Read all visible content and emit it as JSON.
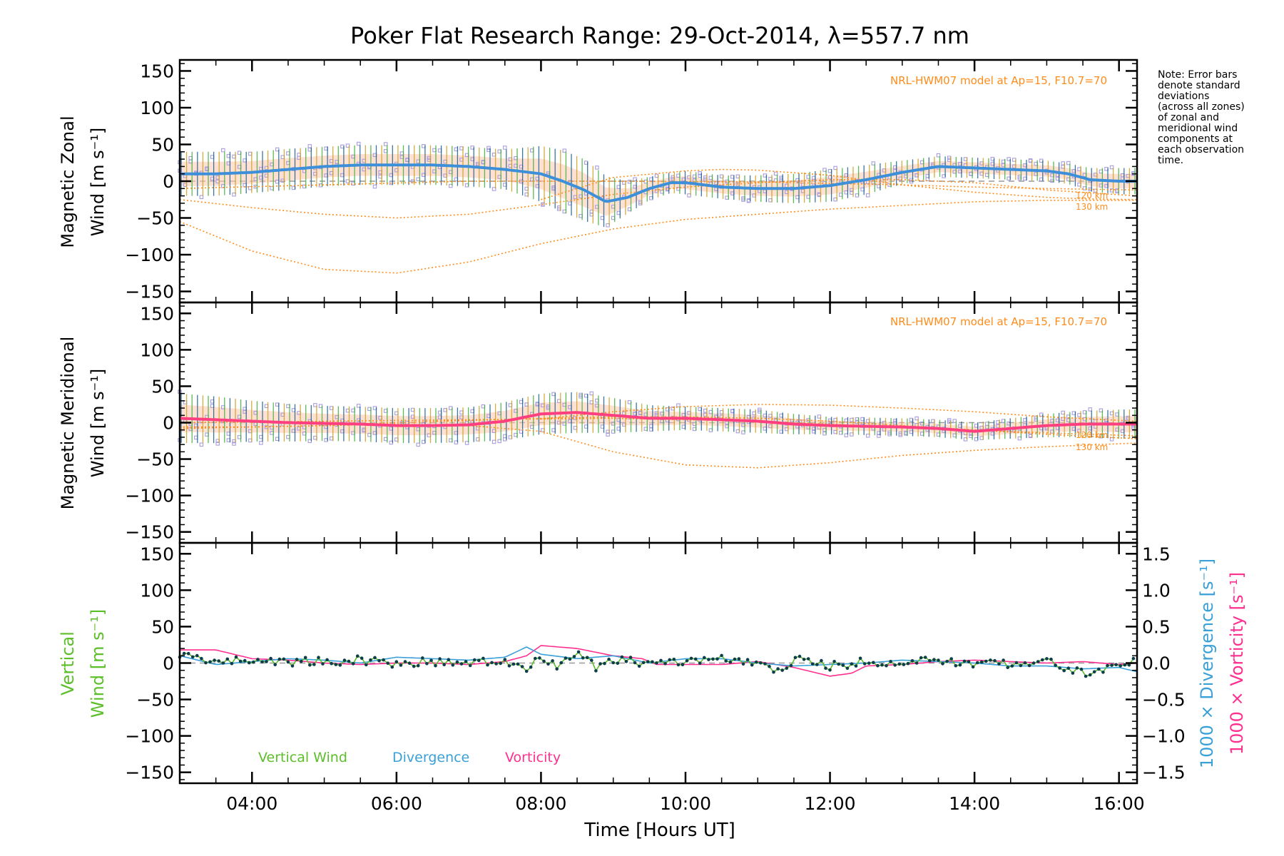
{
  "figure": {
    "title": "Poker Flat Research Range: 29-Oct-2014, λ=557.7 nm",
    "xlabel": "Time [Hours UT]",
    "note_lines": [
      "Note: Error bars",
      "denote standard",
      "deviations",
      "(across all zones)",
      "of zonal and",
      "meridional wind",
      "components at",
      "each observation",
      "time."
    ]
  },
  "colors": {
    "zonal_mean": "#3c8fd8",
    "meridional_mean": "#ff3f7f",
    "vertical": "#5cbf2a",
    "divergence": "#3aa0d8",
    "vorticity": "#ff2f8f",
    "model": "#ff8c1a",
    "zone_points": "#a99ee0",
    "error_bars": "#1a5f8a",
    "spread_fill": "#ffc8b0"
  },
  "chart_data": [
    {
      "type": "line",
      "panel": "zonal",
      "ylabel_lines": [
        "Magnetic Zonal",
        "Wind [m s⁻¹]"
      ],
      "model_label": "NRL-HWM07 model at Ap=15, F10.7=70",
      "altitude_labels": [
        "120 km",
        "130 km"
      ],
      "xlim": [
        3.0,
        16.25
      ],
      "ylim": [
        -165,
        165
      ],
      "xticks": [
        4,
        6,
        8,
        10,
        12,
        14,
        16
      ],
      "xtick_labels": [
        "04:00",
        "06:00",
        "08:00",
        "10:00",
        "12:00",
        "14:00",
        "16:00"
      ],
      "yticks": [
        -150,
        -100,
        -50,
        0,
        50,
        100,
        150
      ],
      "ytick_labels": [
        "−150",
        "−100",
        "−50",
        "0",
        "50",
        "100",
        "150"
      ],
      "series": [
        {
          "role": "mean",
          "x": [
            3.0,
            3.5,
            4.0,
            4.5,
            5.0,
            5.5,
            6.0,
            6.5,
            7.0,
            7.5,
            8.0,
            8.3,
            8.6,
            8.9,
            9.2,
            9.5,
            9.8,
            10.0,
            10.5,
            11.0,
            11.5,
            12.0,
            12.5,
            13.0,
            13.5,
            14.0,
            14.5,
            15.0,
            15.3,
            15.6,
            16.0,
            16.25
          ],
          "y": [
            10,
            10,
            12,
            16,
            20,
            22,
            22,
            22,
            20,
            16,
            10,
            0,
            -12,
            -28,
            -22,
            -10,
            -2,
            -2,
            -8,
            -10,
            -10,
            -6,
            2,
            12,
            20,
            18,
            16,
            14,
            10,
            2,
            0,
            0
          ],
          "spread": [
            30,
            30,
            28,
            28,
            27,
            27,
            27,
            27,
            27,
            27,
            38,
            42,
            42,
            35,
            22,
            16,
            14,
            16,
            16,
            18,
            20,
            22,
            20,
            16,
            14,
            14,
            14,
            14,
            14,
            16,
            18,
            18
          ]
        },
        {
          "role": "model-120km",
          "x": [
            3.0,
            4.0,
            5.0,
            6.0,
            7.0,
            8.0,
            9.0,
            10.0,
            11.0,
            12.0,
            13.0,
            14.0,
            15.0,
            16.25
          ],
          "y": [
            -25,
            -36,
            -45,
            -50,
            -45,
            -32,
            -18,
            -8,
            -2,
            2,
            2,
            -2,
            -12,
            -20
          ]
        },
        {
          "role": "model-130km",
          "x": [
            3.0,
            4.0,
            5.0,
            6.0,
            7.0,
            8.0,
            9.0,
            10.0,
            11.0,
            12.0,
            13.0,
            14.0,
            15.0,
            16.25
          ],
          "y": [
            -55,
            -95,
            -120,
            -125,
            -110,
            -85,
            -65,
            -52,
            -45,
            -38,
            -33,
            -28,
            -26,
            -26
          ]
        },
        {
          "role": "model-component",
          "x": [
            8.0,
            9.0,
            10.0,
            10.5,
            11.0,
            12.0,
            13.0,
            14.0,
            15.0,
            15.5,
            16.25
          ],
          "y": [
            -25,
            5,
            14,
            16,
            15,
            8,
            -5,
            -15,
            -22,
            -24,
            -25
          ]
        },
        {
          "role": "model-component",
          "x": [
            3.0,
            5.0,
            7.0,
            9.0,
            11.0,
            12.0,
            13.0,
            14.0,
            15.0,
            16.25
          ],
          "y": [
            -10,
            -5,
            0,
            0,
            -1,
            -3,
            -5,
            -8,
            -10,
            -12
          ]
        }
      ]
    },
    {
      "type": "line",
      "panel": "meridional",
      "ylabel_lines": [
        "Magnetic Meridional",
        "Wind [m s⁻¹]"
      ],
      "model_label": "NRL-HWM07 model at Ap=15, F10.7=70",
      "altitude_labels": [
        "120 km",
        "130 km"
      ],
      "xlim": [
        3.0,
        16.25
      ],
      "ylim": [
        -165,
        165
      ],
      "yticks": [
        -150,
        -100,
        -50,
        0,
        50,
        100,
        150
      ],
      "ytick_labels": [
        "−150",
        "−100",
        "−50",
        "0",
        "50",
        "100",
        "150"
      ],
      "series": [
        {
          "role": "mean",
          "x": [
            3.0,
            3.5,
            4.0,
            4.5,
            5.0,
            5.5,
            6.0,
            6.5,
            7.0,
            7.5,
            8.0,
            8.5,
            9.0,
            9.5,
            10.0,
            10.5,
            11.0,
            11.5,
            12.0,
            12.5,
            13.0,
            13.5,
            14.0,
            14.5,
            15.0,
            15.5,
            16.0,
            16.25
          ],
          "y": [
            6,
            4,
            2,
            0,
            -1,
            -2,
            -4,
            -4,
            -3,
            2,
            12,
            14,
            10,
            6,
            6,
            4,
            2,
            -2,
            -4,
            -5,
            -6,
            -8,
            -12,
            -8,
            -4,
            -2,
            -2,
            -2
          ],
          "spread": [
            34,
            32,
            28,
            26,
            24,
            24,
            24,
            24,
            24,
            26,
            28,
            28,
            24,
            18,
            16,
            16,
            16,
            14,
            12,
            12,
            12,
            12,
            12,
            14,
            16,
            18,
            20,
            20
          ]
        },
        {
          "role": "model-120km",
          "x": [
            3.0,
            4.0,
            5.0,
            6.0,
            7.0,
            8.0,
            9.0,
            10.0,
            11.0,
            12.0,
            13.0,
            14.0,
            15.0,
            16.25
          ],
          "y": [
            -6,
            -6,
            -4,
            0,
            3,
            6,
            8,
            8,
            6,
            2,
            -4,
            -10,
            -16,
            -22
          ]
        },
        {
          "role": "model-130km",
          "x": [
            3.0,
            4.0,
            5.0,
            6.0,
            7.0,
            8.0,
            9.0,
            10.0,
            11.0,
            12.0,
            13.0,
            14.0,
            15.0,
            16.25
          ],
          "y": [
            -8,
            -6,
            -4,
            -2,
            -4,
            -12,
            -40,
            -58,
            -62,
            -55,
            -45,
            -38,
            -33,
            -28
          ]
        },
        {
          "role": "model-component",
          "x": [
            8.0,
            9.0,
            10.0,
            11.0,
            12.0,
            13.0,
            14.0,
            15.0,
            16.25
          ],
          "y": [
            5,
            15,
            22,
            25,
            24,
            20,
            15,
            8,
            2
          ]
        },
        {
          "role": "model-component",
          "x": [
            3.0,
            5.0,
            7.0,
            9.0,
            11.0,
            12.0,
            13.0,
            14.0,
            15.0,
            16.25
          ],
          "y": [
            0,
            2,
            4,
            6,
            2,
            -2,
            -6,
            -10,
            -14,
            -18
          ]
        }
      ]
    },
    {
      "type": "line",
      "panel": "vertical",
      "ylabel_lines": [
        "Vertical",
        "Wind [m s⁻¹]"
      ],
      "y2label_lines": [
        "1000 × Divergence [s⁻¹]",
        "1000 × Vorticity [s⁻¹]"
      ],
      "xlim": [
        3.0,
        16.25
      ],
      "ylim": [
        -165,
        165
      ],
      "y2lim": [
        -1.65,
        1.65
      ],
      "yticks": [
        -150,
        -100,
        -50,
        0,
        50,
        100,
        150
      ],
      "ytick_labels": [
        "−150",
        "−100",
        "−50",
        "0",
        "50",
        "100",
        "150"
      ],
      "y2ticks": [
        -1.5,
        -1.0,
        -0.5,
        0.0,
        0.5,
        1.0,
        1.5
      ],
      "y2tick_labels": [
        "−1.5",
        "−1.0",
        "−0.5",
        "0.0",
        "0.5",
        "1.0",
        "1.5"
      ],
      "legend": [
        "Vertical Wind",
        "Divergence",
        "Vorticity"
      ],
      "series": [
        {
          "name": "Vertical Wind",
          "axis": "left",
          "x": [
            3.0,
            3.5,
            4.0,
            4.5,
            5.0,
            5.5,
            6.0,
            6.5,
            7.0,
            7.5,
            7.8,
            8.0,
            8.2,
            8.5,
            8.8,
            9.0,
            9.5,
            10.0,
            10.5,
            11.0,
            11.3,
            11.6,
            12.0,
            12.5,
            13.0,
            13.5,
            14.0,
            14.5,
            15.0,
            15.3,
            15.6,
            16.0,
            16.25
          ],
          "y": [
            12,
            2,
            4,
            2,
            2,
            4,
            0,
            2,
            0,
            2,
            -10,
            8,
            -4,
            12,
            -8,
            4,
            0,
            2,
            6,
            -2,
            -10,
            6,
            -4,
            2,
            0,
            4,
            -2,
            0,
            2,
            -6,
            -18,
            2,
            0
          ]
        },
        {
          "name": "Divergence",
          "axis": "right",
          "x": [
            3.0,
            3.5,
            4.0,
            4.5,
            5.0,
            5.5,
            6.0,
            6.5,
            7.0,
            7.5,
            7.8,
            8.0,
            8.5,
            9.0,
            9.5,
            10.0,
            10.5,
            11.0,
            11.5,
            12.0,
            12.5,
            13.0,
            13.5,
            14.0,
            14.5,
            15.0,
            15.5,
            16.0,
            16.25
          ],
          "y": [
            0.1,
            -0.02,
            0.02,
            0.06,
            0.04,
            0.0,
            0.08,
            0.06,
            0.04,
            0.08,
            0.22,
            0.12,
            0.06,
            0.1,
            0.0,
            0.06,
            0.06,
            0.0,
            -0.04,
            -0.02,
            0.0,
            0.04,
            0.02,
            0.0,
            -0.04,
            -0.04,
            -0.08,
            -0.06,
            -0.12
          ]
        },
        {
          "name": "Vorticity",
          "axis": "right",
          "x": [
            3.0,
            3.5,
            4.0,
            4.5,
            5.0,
            5.5,
            6.0,
            6.5,
            7.0,
            7.5,
            7.8,
            8.0,
            8.5,
            9.0,
            9.4,
            9.6,
            10.0,
            10.5,
            11.0,
            11.5,
            12.0,
            12.3,
            12.5,
            13.0,
            13.5,
            14.0,
            14.5,
            15.0,
            15.5,
            16.0,
            16.25
          ],
          "y": [
            0.18,
            0.18,
            0.06,
            0.04,
            0.0,
            -0.02,
            0.0,
            0.0,
            -0.02,
            0.02,
            0.1,
            0.24,
            0.2,
            0.1,
            0.06,
            -0.02,
            -0.02,
            -0.02,
            0.02,
            -0.06,
            -0.18,
            -0.14,
            -0.04,
            -0.02,
            0.02,
            0.04,
            0.02,
            0.0,
            0.02,
            -0.02,
            0.0
          ]
        }
      ]
    }
  ]
}
